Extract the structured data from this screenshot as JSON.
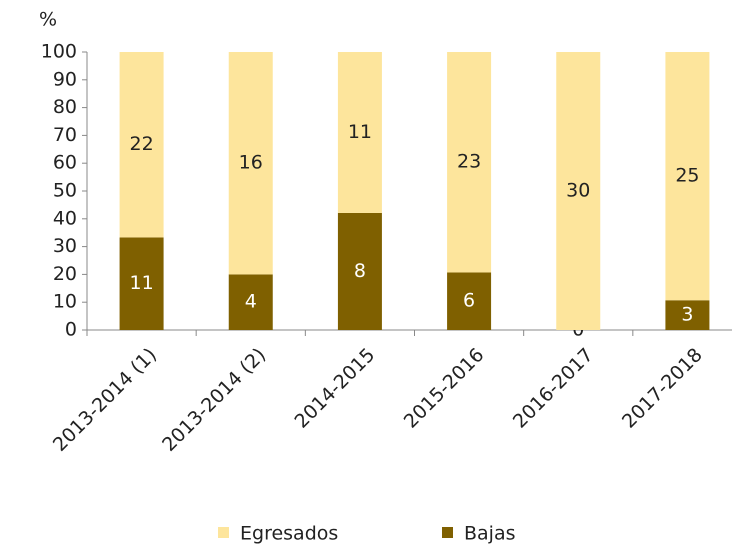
{
  "chart_data": {
    "type": "bar",
    "stacking": "stacked",
    "y_unit": "%",
    "categories": [
      "2013-2014 (1)",
      "2013-2014 (2)",
      "2014-2015",
      "2015-2016",
      "2016-2017",
      "2017-2018"
    ],
    "series": [
      {
        "name": "Bajas",
        "color": "#7f6000",
        "values": [
          33.3,
          20,
          42.1,
          20.7,
          0,
          10.7
        ],
        "counts": [
          11,
          4,
          8,
          6,
          0,
          3
        ]
      },
      {
        "name": "Egresados",
        "color": "#fde59c",
        "values": [
          66.7,
          80,
          57.9,
          79.3,
          100,
          89.3
        ],
        "counts": [
          22,
          16,
          11,
          23,
          30,
          25
        ]
      }
    ],
    "ylim": [
      0,
      100
    ],
    "yticks": [
      0,
      10,
      20,
      30,
      40,
      50,
      60,
      70,
      80,
      90,
      100
    ],
    "grid": false,
    "legend": "bottom"
  }
}
